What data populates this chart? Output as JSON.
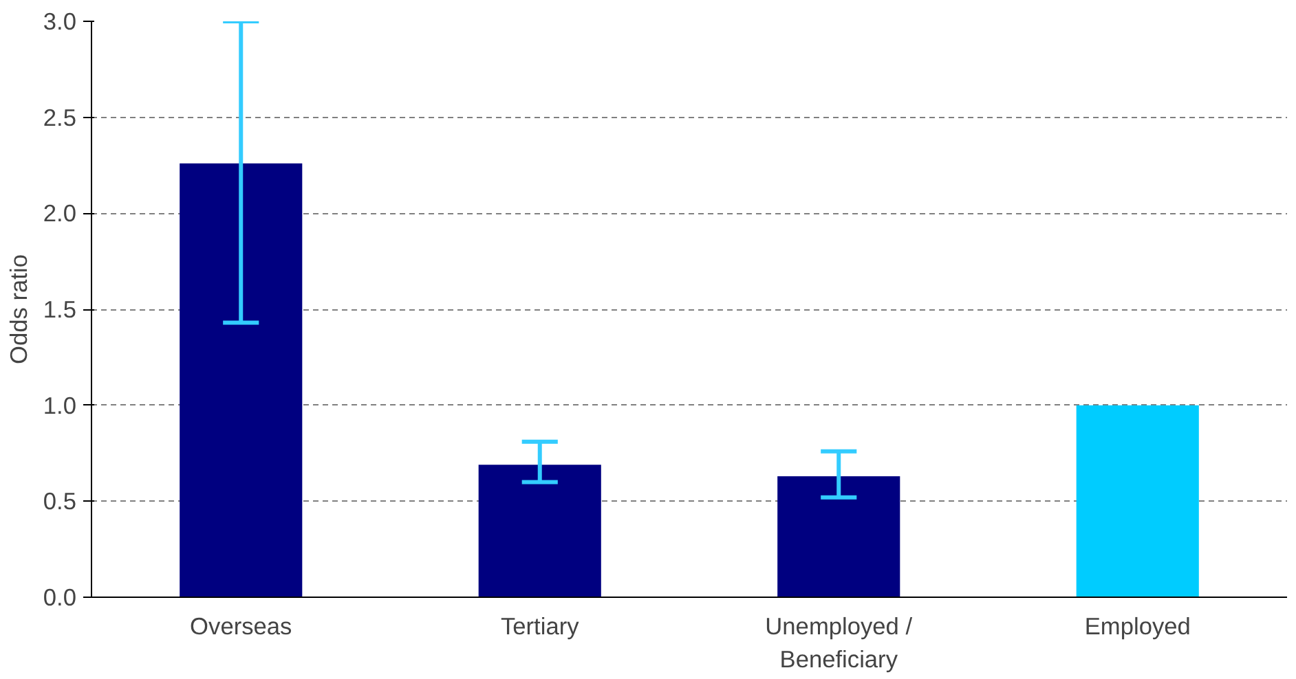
{
  "chart_data": {
    "type": "bar",
    "ylabel": "Odds ratio",
    "categories": [
      "Overseas",
      "Tertiary",
      "Unemployed / Beneficiary",
      "Employed"
    ],
    "values": [
      2.26,
      0.69,
      0.63,
      1.0
    ],
    "colors": [
      "#000080",
      "#000080",
      "#000080",
      "#00ccff"
    ],
    "errors": [
      [
        1.43,
        3.0
      ],
      [
        0.6,
        0.81
      ],
      [
        0.52,
        0.76
      ],
      null
    ],
    "ylim": [
      0,
      3
    ],
    "yticks": [
      {
        "value": 0,
        "label": "0.0"
      },
      {
        "value": 0.5,
        "label": "0.5"
      },
      {
        "value": 1,
        "label": "1.0"
      },
      {
        "value": 1.5,
        "label": "1.5"
      },
      {
        "value": 2,
        "label": "2.0"
      },
      {
        "value": 2.5,
        "label": "2.5"
      },
      {
        "value": 3,
        "label": "3.0"
      }
    ],
    "grid": "y"
  }
}
